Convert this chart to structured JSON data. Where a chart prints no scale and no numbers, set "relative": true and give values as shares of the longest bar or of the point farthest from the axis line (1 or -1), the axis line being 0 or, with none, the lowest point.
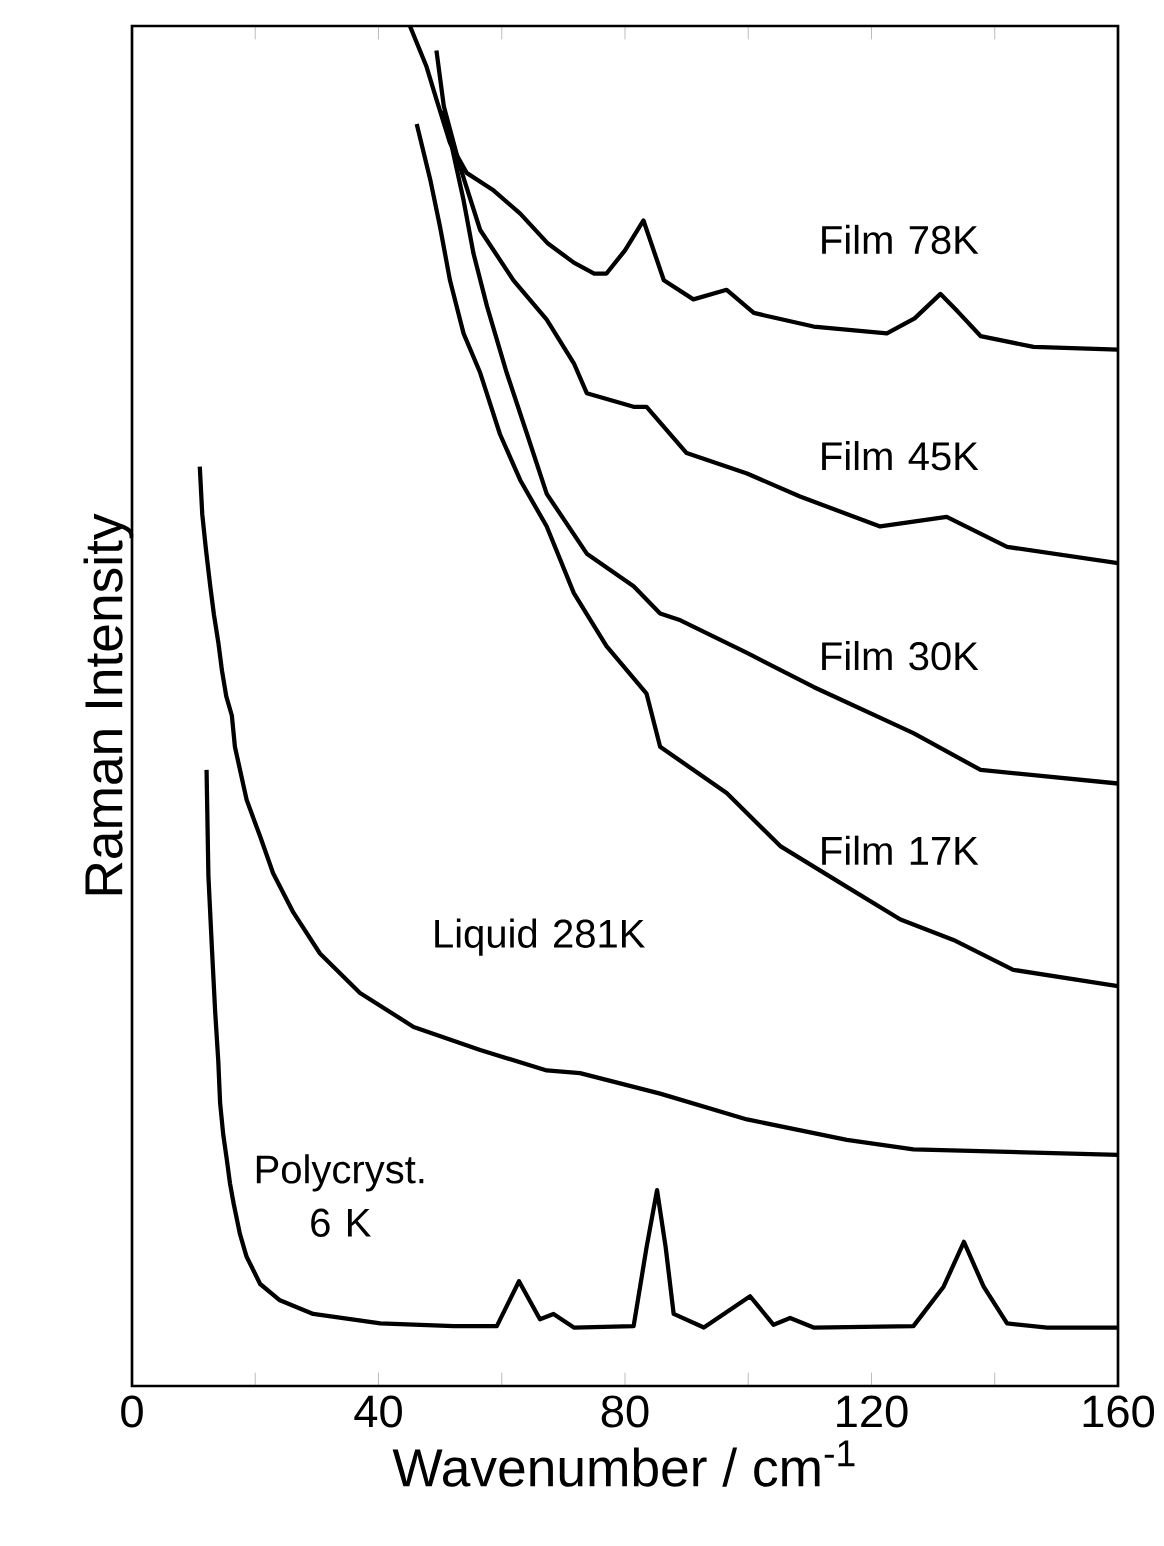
{
  "chart_data": {
    "type": "line",
    "xlabel": "Wavenumber / cm$^{-1}$",
    "ylabel": "Raman Intensity",
    "relative": true,
    "tick_labels": "x",
    "xlim": [
      0,
      160
    ],
    "xticks": [
      0,
      {
        "value": 20,
        "label": null
      },
      40,
      {
        "value": 60,
        "label": null
      },
      80,
      {
        "value": 100,
        "label": null
      },
      120,
      {
        "value": 140,
        "label": null
      },
      160
    ],
    "series": [
      {
        "name": "Film 78K",
        "color": "#000000",
        "x": [
          45.1,
          47.8,
          49.4,
          51.6,
          54.3,
          58.7,
          63,
          67.5,
          71.7,
          75,
          77,
          80,
          83,
          86.3,
          91.1,
          96.5,
          100.9,
          110.6,
          122.5,
          127,
          131.2,
          134,
          137.7,
          146.3,
          160
        ],
        "values": [
          1,
          0.97,
          0.946,
          0.914,
          0.892,
          0.879,
          0.862,
          0.84,
          0.826,
          0.818,
          0.818,
          0.835,
          0.857,
          0.813,
          0.799,
          0.806,
          0.789,
          0.779,
          0.774,
          0.785,
          0.803,
          0.79,
          0.772,
          0.764,
          0.762
        ]
      },
      {
        "name": "Film 45K",
        "color": "#000000",
        "x": [
          49.4,
          50.6,
          53.2,
          56.5,
          61.9,
          67.3,
          71.7,
          73.8,
          81.4,
          83.5,
          90,
          99.8,
          108.4,
          121.4,
          132.2,
          142,
          160
        ],
        "values": [
          0.982,
          0.941,
          0.897,
          0.85,
          0.813,
          0.784,
          0.752,
          0.73,
          0.72,
          0.72,
          0.686,
          0.671,
          0.654,
          0.632,
          0.639,
          0.617,
          0.605
        ]
      },
      {
        "name": "Film 30K",
        "color": "#000000",
        "x": [
          50.6,
          53.8,
          55.4,
          57.6,
          60.8,
          64.1,
          67.3,
          73.8,
          81.4,
          85.7,
          89,
          99.8,
          110.6,
          126.8,
          137.7,
          160
        ],
        "values": [
          0.938,
          0.872,
          0.833,
          0.794,
          0.745,
          0.7,
          0.656,
          0.612,
          0.588,
          0.568,
          0.563,
          0.539,
          0.514,
          0.48,
          0.453,
          0.443
        ]
      },
      {
        "name": "Film 17K",
        "color": "#000000",
        "x": [
          46.2,
          48.4,
          50,
          51.6,
          53.8,
          56.5,
          59.7,
          63,
          67.3,
          71.7,
          77,
          83.5,
          85.7,
          96.5,
          105.2,
          116,
          124.7,
          133.3,
          143,
          160
        ],
        "values": [
          0.928,
          0.887,
          0.852,
          0.813,
          0.774,
          0.745,
          0.7,
          0.666,
          0.632,
          0.583,
          0.544,
          0.509,
          0.47,
          0.436,
          0.397,
          0.367,
          0.343,
          0.328,
          0.306,
          0.294
        ]
      },
      {
        "name": "Liquid 281K",
        "color": "#000000",
        "x": [
          11,
          11.4,
          12,
          12.7,
          13.3,
          14,
          14.6,
          15.3,
          16.2,
          16.7,
          18.6,
          20.8,
          22.9,
          26.2,
          30.5,
          37,
          45.7,
          56.5,
          67.3,
          72.7,
          85.7,
          99.8,
          116,
          126.8,
          160
        ],
        "values": [
          0.676,
          0.641,
          0.615,
          0.588,
          0.567,
          0.547,
          0.526,
          0.507,
          0.493,
          0.47,
          0.431,
          0.404,
          0.377,
          0.348,
          0.318,
          0.289,
          0.264,
          0.247,
          0.232,
          0.23,
          0.215,
          0.196,
          0.181,
          0.174,
          0.17
        ]
      },
      {
        "name": "Polycryst. 6 K",
        "color": "#000000",
        "x": [
          12.1,
          12.4,
          13,
          13.5,
          14,
          14.3,
          14.8,
          15.4,
          15.9,
          16.5,
          17.5,
          18.6,
          20.8,
          24,
          29.4,
          40.3,
          52.2,
          59.2,
          62.8,
          66.2,
          68.4,
          71.7,
          81.4,
          83.5,
          85.2,
          86.6,
          87.9,
          92.8,
          100.3,
          104.1,
          106.8,
          110.6,
          126.8,
          131.7,
          135,
          138.2,
          142,
          148.5,
          160
        ],
        "values": [
          0.453,
          0.375,
          0.319,
          0.275,
          0.239,
          0.208,
          0.185,
          0.166,
          0.149,
          0.134,
          0.112,
          0.095,
          0.075,
          0.063,
          0.053,
          0.046,
          0.044,
          0.044,
          0.077,
          0.049,
          0.053,
          0.043,
          0.044,
          0.102,
          0.144,
          0.102,
          0.053,
          0.043,
          0.066,
          0.045,
          0.05,
          0.043,
          0.044,
          0.073,
          0.106,
          0.073,
          0.046,
          0.043,
          0.043
        ]
      }
    ]
  }
}
